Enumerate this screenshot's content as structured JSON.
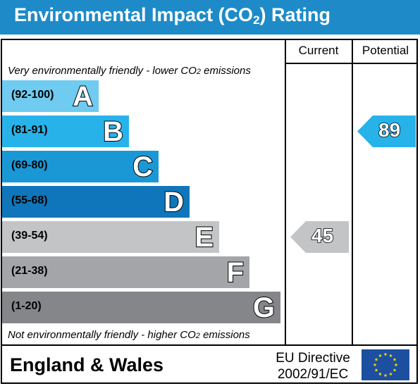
{
  "header": {
    "title_main": "Environmental Impact (CO",
    "title_sub": "2",
    "title_end": ") Rating"
  },
  "columns": {
    "current": "Current",
    "potential": "Potential"
  },
  "notes": {
    "top_main": "Very environmentally friendly - lower CO",
    "top_sub": "2",
    "top_end": " emissions",
    "bottom_main": "Not environmentally friendly - higher CO",
    "bottom_sub": "2",
    "bottom_end": " emissions"
  },
  "footer": {
    "region": "England & Wales",
    "directive_line1": "EU Directive",
    "directive_line2": "2002/91/EC"
  },
  "colors": {
    "header": "#1e8bc8",
    "A": "#6fcbef",
    "B": "#27b3ea",
    "C": "#1a98d6",
    "D": "#0f76bb",
    "E": "#c3c4c6",
    "F": "#a4a5a8",
    "G": "#858689",
    "eu_blue": "#1d4fa0",
    "eu_star": "#ffdd00"
  },
  "chart_data": {
    "type": "bar",
    "bands": [
      {
        "letter": "A",
        "range": "(92-100)",
        "min": 92,
        "max": 100
      },
      {
        "letter": "B",
        "range": "(81-91)",
        "min": 81,
        "max": 91
      },
      {
        "letter": "C",
        "range": "(69-80)",
        "min": 69,
        "max": 80
      },
      {
        "letter": "D",
        "range": "(55-68)",
        "min": 55,
        "max": 68
      },
      {
        "letter": "E",
        "range": "(39-54)",
        "min": 39,
        "max": 54
      },
      {
        "letter": "F",
        "range": "(21-38)",
        "min": 21,
        "max": 38
      },
      {
        "letter": "G",
        "range": "(1-20)",
        "min": 1,
        "max": 20
      }
    ],
    "current": {
      "value": 45,
      "label": "45",
      "band": "E"
    },
    "potential": {
      "value": 89,
      "label": "89",
      "band": "B"
    }
  }
}
